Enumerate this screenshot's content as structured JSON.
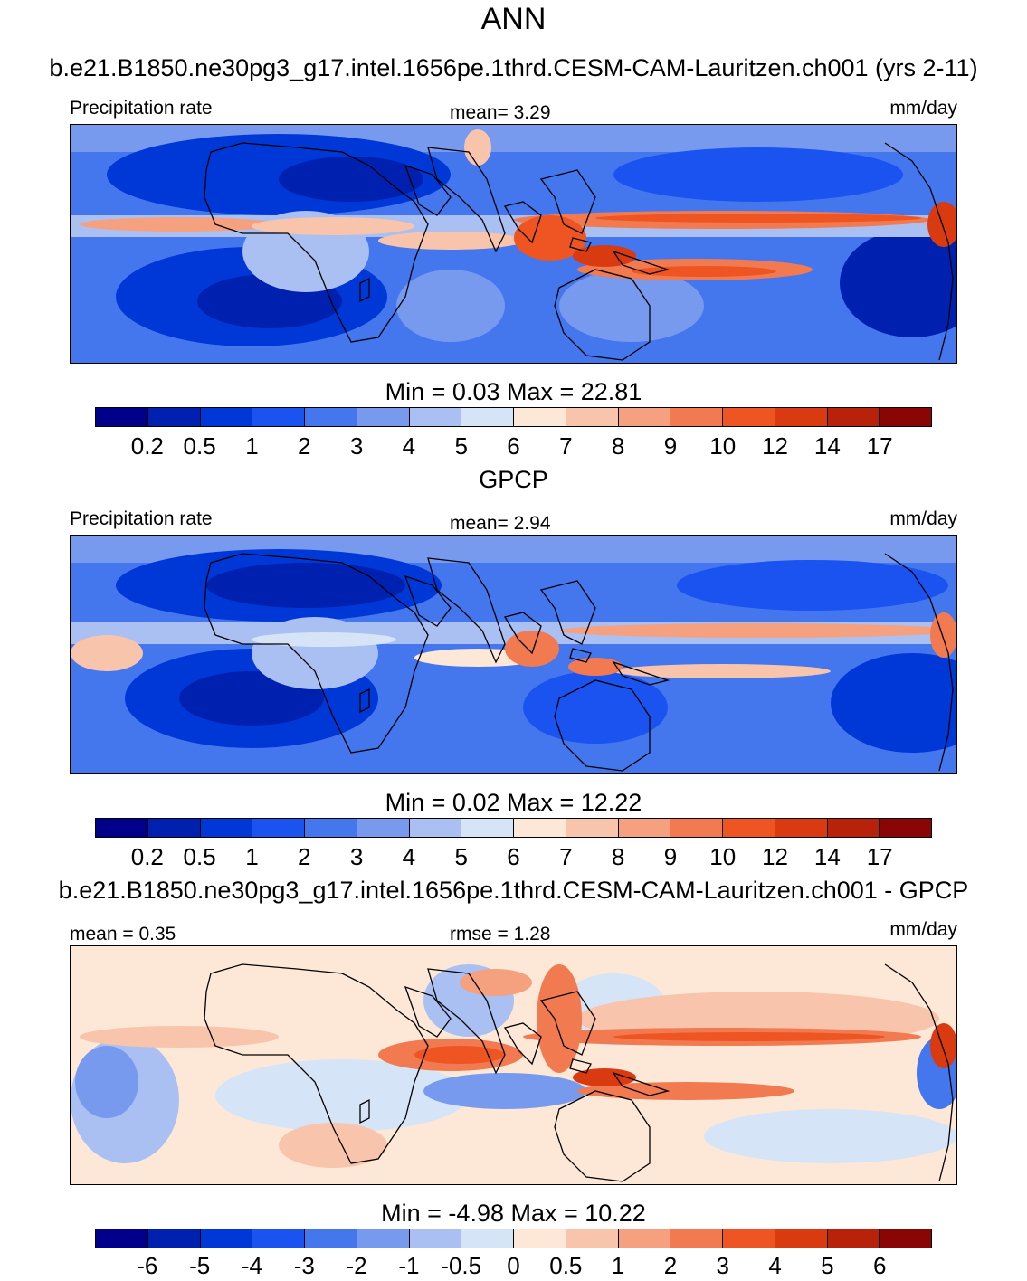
{
  "figure_title": "ANN",
  "panels": [
    {
      "title": "b.e21.B1850.ne30pg3_g17.intel.1656pe.1thrd.CESM-CAM-Lauritzen.ch001 (yrs 2-11)",
      "left_label": "Precipitation rate",
      "center_label": "mean=   3.29",
      "units": "mm/day",
      "minmax": "Min =   0.03 Max =  22.81",
      "ticks": [
        "0.2",
        "0.5",
        "1",
        "2",
        "3",
        "4",
        "5",
        "6",
        "7",
        "8",
        "9",
        "10",
        "12",
        "14",
        "17"
      ]
    },
    {
      "title": "GPCP",
      "left_label": "Precipitation rate",
      "center_label": "mean=   2.94",
      "units": "mm/day",
      "minmax": "Min =   0.02 Max =  12.22",
      "ticks": [
        "0.2",
        "0.5",
        "1",
        "2",
        "3",
        "4",
        "5",
        "6",
        "7",
        "8",
        "9",
        "10",
        "12",
        "14",
        "17"
      ]
    },
    {
      "title": "b.e21.B1850.ne30pg3_g17.intel.1656pe.1thrd.CESM-CAM-Lauritzen.ch001 - GPCP",
      "left_label": "mean =   0.35",
      "center_label": "rmse =   1.28",
      "units": "mm/day",
      "minmax": "Min =  -4.98 Max =  10.22",
      "ticks": [
        "-6",
        "-5",
        "-4",
        "-3",
        "-2",
        "-1",
        "-0.5",
        "0",
        "0.5",
        "1",
        "2",
        "3",
        "4",
        "5",
        "6"
      ]
    }
  ],
  "colorbar_colors": [
    "#00008a",
    "#0020b0",
    "#0038d8",
    "#1a53f0",
    "#4477ee",
    "#779aee",
    "#aac0f2",
    "#d6e4f8",
    "#fde8d8",
    "#f8c4ac",
    "#f5a07f",
    "#f27a50",
    "#ee5522",
    "#d93a10",
    "#b8220a",
    "#8a0606"
  ]
}
